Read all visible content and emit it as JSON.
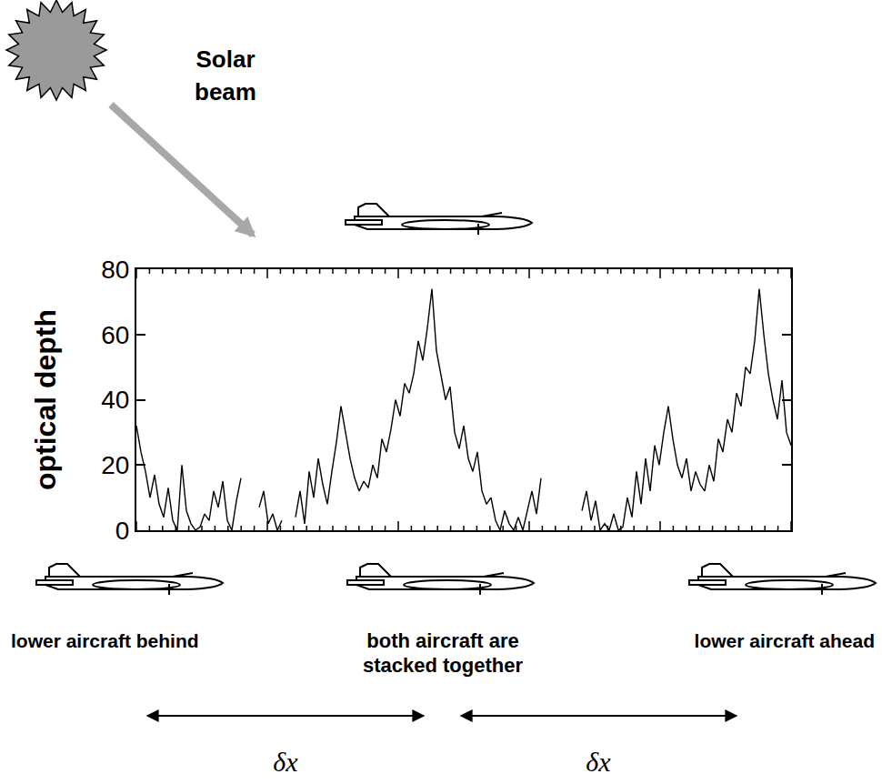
{
  "chart_data": {
    "type": "line",
    "y_label": "optical depth",
    "color": "#000000",
    "tick_labels": "y",
    "ylim": [
      0,
      80
    ],
    "yticks": [
      0,
      20,
      40,
      60,
      80
    ],
    "annotations": [
      "Solar beam",
      "lower aircraft behind",
      "both aircraft are stacked together",
      "lower aircraft ahead",
      "δx",
      "δx"
    ],
    "categories": [
      null,
      null,
      null,
      null,
      null,
      null,
      null,
      null,
      null,
      null,
      null,
      null,
      null,
      null,
      null,
      null,
      null,
      null,
      null,
      null,
      null,
      null,
      null,
      null,
      null,
      null,
      null,
      null,
      null,
      null,
      null,
      null,
      null,
      null,
      null,
      null,
      null,
      null,
      null,
      null,
      null,
      null,
      null,
      null,
      null,
      null,
      null,
      null,
      null,
      null,
      null,
      null,
      null,
      null,
      null,
      null,
      null,
      null,
      null,
      null,
      null,
      null,
      null,
      null,
      null,
      null,
      null,
      null,
      null,
      null,
      null,
      null,
      null,
      null,
      null,
      null,
      null,
      null,
      null,
      null,
      null,
      null,
      null,
      null,
      null,
      null,
      null,
      null,
      null,
      null,
      null,
      null,
      null,
      null,
      null,
      null,
      null,
      null,
      null,
      null,
      null,
      null,
      null,
      null,
      null,
      null,
      null,
      null,
      null,
      null,
      null,
      null,
      null,
      null,
      null,
      null,
      null,
      null,
      null,
      null,
      null,
      null,
      null,
      null,
      null,
      null,
      null,
      null,
      null,
      null,
      null,
      null,
      null,
      null,
      null,
      null,
      null,
      null,
      null,
      null,
      null,
      null,
      null,
      null,
      null
    ],
    "values": [
      32,
      24,
      18,
      10,
      17,
      8,
      4,
      13,
      3,
      0,
      20,
      6,
      2,
      0,
      1,
      5,
      3,
      12,
      7,
      15,
      3,
      0,
      9,
      16,
      null,
      null,
      null,
      7,
      12,
      2,
      5,
      0,
      3,
      null,
      null,
      4,
      12,
      2,
      18,
      10,
      22,
      14,
      8,
      18,
      27,
      38,
      30,
      22,
      16,
      12,
      15,
      13,
      20,
      16,
      28,
      24,
      31,
      40,
      35,
      45,
      42,
      48,
      58,
      52,
      62,
      74,
      55,
      48,
      40,
      44,
      30,
      25,
      32,
      22,
      18,
      24,
      12,
      8,
      10,
      3,
      0,
      6,
      2,
      0,
      4,
      0,
      6,
      12,
      5,
      16,
      null,
      null,
      null,
      null,
      null,
      null,
      null,
      null,
      6,
      12,
      3,
      9,
      0,
      2,
      0,
      5,
      0,
      1,
      10,
      4,
      18,
      8,
      22,
      12,
      26,
      20,
      30,
      38,
      28,
      20,
      16,
      22,
      12,
      18,
      14,
      12,
      20,
      15,
      28,
      24,
      34,
      30,
      42,
      38,
      50,
      48,
      58,
      74,
      60,
      48,
      40,
      34,
      46,
      30,
      26
    ]
  }
}
